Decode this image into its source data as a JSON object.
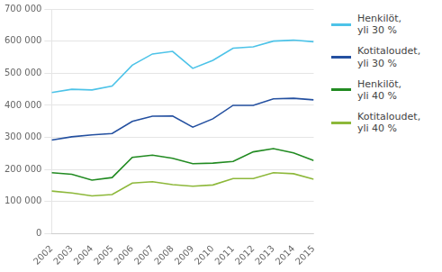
{
  "chart_data": {
    "type": "line",
    "x": [
      2002,
      2003,
      2004,
      2005,
      2006,
      2007,
      2008,
      2009,
      2010,
      2011,
      2012,
      2013,
      2014,
      2015
    ],
    "series": [
      {
        "name": "Henkilöt,\nyli 30 %",
        "color": "#4DC3E8",
        "values": [
          440000,
          450000,
          448000,
          460000,
          525000,
          560000,
          568000,
          515000,
          540000,
          578000,
          582000,
          600000,
          603000,
          598000
        ]
      },
      {
        "name": "Kotitaloudet,\nyli 30 %",
        "color": "#2450A0",
        "values": [
          292000,
          302000,
          308000,
          312000,
          350000,
          366000,
          367000,
          332000,
          358000,
          400000,
          400000,
          420000,
          422000,
          417000
        ]
      },
      {
        "name": "Henkilöt,\nyli 40 %",
        "color": "#228B22",
        "values": [
          190000,
          185000,
          167000,
          175000,
          238000,
          245000,
          235000,
          218000,
          220000,
          225000,
          255000,
          265000,
          252000,
          228000
        ]
      },
      {
        "name": "Kotitaloudet,\nyli 40 %",
        "color": "#8DB83A",
        "values": [
          133000,
          127000,
          118000,
          122000,
          158000,
          162000,
          153000,
          148000,
          152000,
          172000,
          172000,
          190000,
          187000,
          170000
        ]
      }
    ],
    "xlim": [
      2002,
      2015
    ],
    "xticks": [
      2002,
      2003,
      2004,
      2005,
      2006,
      2007,
      2008,
      2009,
      2010,
      2011,
      2012,
      2013,
      2014,
      2015
    ],
    "ylim": [
      0,
      700000
    ],
    "yticks": [
      0,
      {
        "value": 100000,
        "label": "100 000"
      },
      {
        "value": 200000,
        "label": "200 000"
      },
      {
        "value": 300000,
        "label": "300 000"
      },
      {
        "value": 400000,
        "label": "400 000"
      },
      {
        "value": 500000,
        "label": "500 000"
      },
      {
        "value": 600000,
        "label": "600 000"
      },
      {
        "value": 700000,
        "label": "700 000"
      }
    ],
    "grid": "y",
    "legend": "right"
  }
}
